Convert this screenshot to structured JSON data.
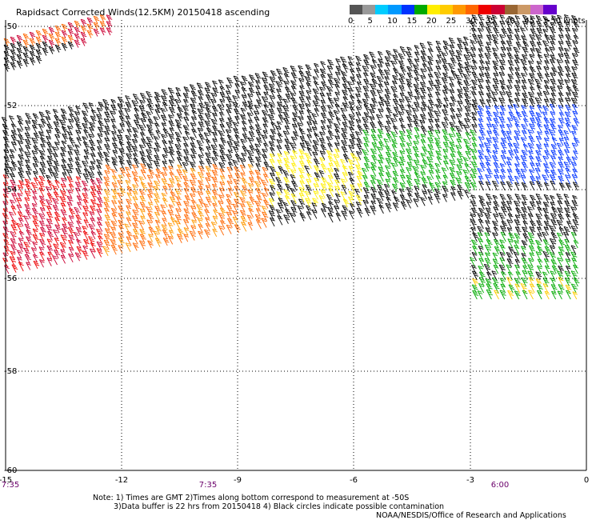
{
  "title": "Rapidsact Corrected Winds(12.5KM) 20150418 ascending",
  "legend": {
    "colors": [
      "#555555",
      "#999999",
      "#00ccff",
      "#0099ff",
      "#0033ff",
      "#00aa00",
      "#ffee00",
      "#ffcc00",
      "#ff9900",
      "#ff6600",
      "#ee0000",
      "#cc0033",
      "#996633",
      "#cc9966",
      "#cc66cc",
      "#6600cc"
    ],
    "labels": [
      "0",
      "5",
      "10",
      "15",
      "20",
      "25",
      "30",
      "35",
      "40",
      "45",
      ">50 knots"
    ]
  },
  "axes": {
    "x_ticks": [
      "-15",
      "-12",
      "-9",
      "-6",
      "-3",
      "0"
    ],
    "y_ticks": [
      "-50",
      "-52",
      "-54",
      "-56",
      "-58",
      "-60"
    ]
  },
  "times": [
    "7:35",
    "7:35",
    "6:00"
  ],
  "notes": [
    "Note: 1) Times are GMT 2)Times along bottom correspond to measurement at -50S",
    "3)Data buffer is 22 hrs from 20150418 4) Black circles indicate possible contamination"
  ],
  "credit": "NOAA/NESDIS/Office of Research and Applications"
}
